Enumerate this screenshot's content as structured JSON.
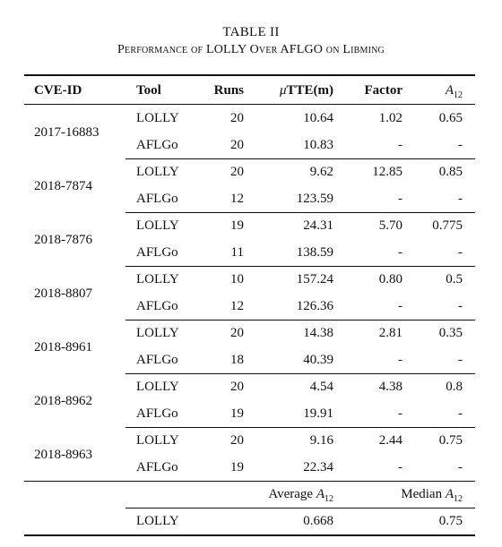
{
  "table_label": "TABLE II",
  "table_title": "Performance of LOLLY Over AFLGO on Libming",
  "headers": {
    "cve_id": "CVE-ID",
    "tool": "Tool",
    "runs": "Runs",
    "mu_symbol": "μ",
    "tte": "TTE(m)",
    "factor": "Factor",
    "a_letter": "A",
    "a_sub": "12"
  },
  "groups": [
    {
      "cve": "2017-16883",
      "rows": [
        {
          "tool": "LOLLY",
          "runs": "20",
          "tte": "10.64",
          "factor": "1.02",
          "a12": "0.65"
        },
        {
          "tool": "AFLGo",
          "runs": "20",
          "tte": "10.83",
          "factor": "-",
          "a12": "-"
        }
      ]
    },
    {
      "cve": "2018-7874",
      "rows": [
        {
          "tool": "LOLLY",
          "runs": "20",
          "tte": "9.62",
          "factor": "12.85",
          "a12": "0.85"
        },
        {
          "tool": "AFLGo",
          "runs": "12",
          "tte": "123.59",
          "factor": "-",
          "a12": "-"
        }
      ]
    },
    {
      "cve": "2018-7876",
      "rows": [
        {
          "tool": "LOLLY",
          "runs": "19",
          "tte": "24.31",
          "factor": "5.70",
          "a12": "0.775"
        },
        {
          "tool": "AFLGo",
          "runs": "11",
          "tte": "138.59",
          "factor": "-",
          "a12": "-"
        }
      ]
    },
    {
      "cve": "2018-8807",
      "rows": [
        {
          "tool": "LOLLY",
          "runs": "10",
          "tte": "157.24",
          "factor": "0.80",
          "a12": "0.5"
        },
        {
          "tool": "AFLGo",
          "runs": "12",
          "tte": "126.36",
          "factor": "-",
          "a12": "-"
        }
      ]
    },
    {
      "cve": "2018-8961",
      "rows": [
        {
          "tool": "LOLLY",
          "runs": "20",
          "tte": "14.38",
          "factor": "2.81",
          "a12": "0.35"
        },
        {
          "tool": "AFLGo",
          "runs": "18",
          "tte": "40.39",
          "factor": "-",
          "a12": "-"
        }
      ]
    },
    {
      "cve": "2018-8962",
      "rows": [
        {
          "tool": "LOLLY",
          "runs": "20",
          "tte": "4.54",
          "factor": "4.38",
          "a12": "0.8"
        },
        {
          "tool": "AFLGo",
          "runs": "19",
          "tte": "19.91",
          "factor": "-",
          "a12": "-"
        }
      ]
    },
    {
      "cve": "2018-8963",
      "rows": [
        {
          "tool": "LOLLY",
          "runs": "20",
          "tte": "9.16",
          "factor": "2.44",
          "a12": "0.75"
        },
        {
          "tool": "AFLGo",
          "runs": "19",
          "tte": "22.34",
          "factor": "-",
          "a12": "-"
        }
      ]
    }
  ],
  "summary": {
    "average_label": "Average",
    "median_label": "Median",
    "tool": "LOLLY",
    "average": "0.668",
    "median": "0.75"
  }
}
